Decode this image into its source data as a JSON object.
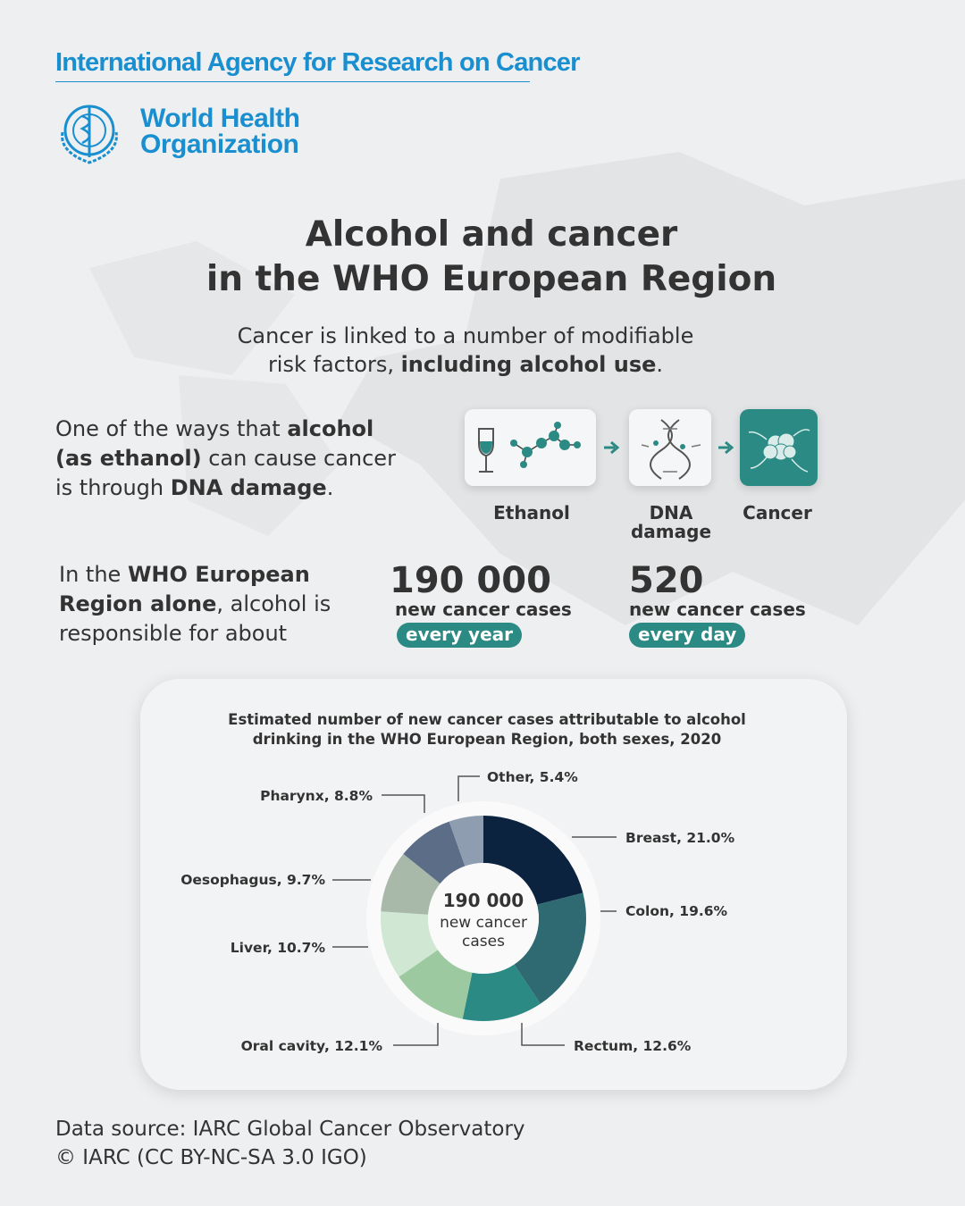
{
  "header": {
    "agency": "International Agency for Research on Cancer",
    "org": [
      "World Health",
      "Organization"
    ]
  },
  "title": [
    "Alcohol and cancer",
    "in the WHO European Region"
  ],
  "intro": [
    [
      {
        "text": "Cancer is linked to a number of modifiable",
        "bold": false
      }
    ],
    [
      {
        "text": "risk factors, ",
        "bold": false
      },
      {
        "text": "including alcohol use",
        "bold": true
      },
      {
        "text": ".",
        "bold": false
      }
    ]
  ],
  "mechanism": [
    [
      {
        "text": "One of the ways that ",
        "bold": false
      },
      {
        "text": "alcohol",
        "bold": true
      }
    ],
    [
      {
        "text": "(as ethanol)",
        "bold": true
      },
      {
        "text": " can cause cancer",
        "bold": false
      }
    ],
    [
      {
        "text": "is through ",
        "bold": false
      },
      {
        "text": "DNA damage",
        "bold": true
      },
      {
        "text": ".",
        "bold": false
      }
    ]
  ],
  "steps": [
    [
      "Ethanol"
    ],
    [
      "DNA",
      "damage"
    ],
    [
      "Cancer"
    ]
  ],
  "burden": [
    [
      {
        "text": "In the ",
        "bold": false
      },
      {
        "text": "WHO European",
        "bold": true
      }
    ],
    [
      {
        "text": "Region alone",
        "bold": true
      },
      {
        "text": ", alcohol is",
        "bold": false
      }
    ],
    [
      {
        "text": "responsible for about",
        "bold": false
      }
    ]
  ],
  "stats": [
    {
      "value": "190 000",
      "text": "new cancer cases",
      "period": "every year"
    },
    {
      "value": "520",
      "text": "new cancer cases",
      "period": "every day"
    }
  ],
  "chart_data": {
    "type": "donut",
    "title": [
      "Estimated number of new cancer cases attributable to alcohol",
      "drinking in the WHO European Region, both sexes, 2020"
    ],
    "center": [
      "190 000",
      "new cancer",
      "cases"
    ],
    "values": [
      21.0,
      19.6,
      12.6,
      12.1,
      10.7,
      9.7,
      8.8,
      5.4
    ],
    "value_labels": [
      "Breast, 21.0%",
      "Colon, 19.6%",
      "Rectum, 12.6%",
      "Oral cavity, 12.1%",
      "Liver, 10.7%",
      "Oesophagus, 9.7%",
      "Pharynx, 8.8%",
      "Other, 5.4%"
    ],
    "colors": [
      "#0c2340",
      "#2f6a72",
      "#2b8a84",
      "#9dc9a1",
      "#d0e7d3",
      "#a8b8a9",
      "#5b6d87",
      "#8e9db0"
    ]
  },
  "footer": [
    "Data source: IARC Global Cancer Observatory",
    "© IARC (CC BY-NC-SA 3.0 IGO)"
  ]
}
